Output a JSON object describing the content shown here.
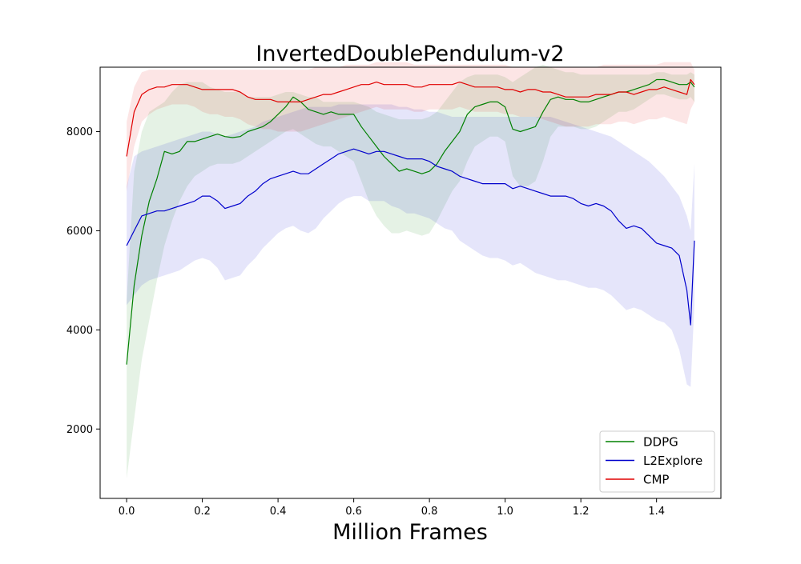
{
  "chart_data": {
    "type": "line",
    "title": "InvertedDoublePendulum-v2",
    "xlabel": "Million Frames",
    "ylabel": "",
    "xlim": [
      -0.07,
      1.57
    ],
    "ylim": [
      600,
      9300
    ],
    "xticks": [
      0.0,
      0.2,
      0.4,
      0.6,
      0.8,
      1.0,
      1.2,
      1.4
    ],
    "xtick_labels": [
      "0.0",
      "0.2",
      "0.4",
      "0.6",
      "0.8",
      "1.0",
      "1.2",
      "1.4"
    ],
    "yticks": [
      2000,
      4000,
      6000,
      8000
    ],
    "ytick_labels": [
      "2000",
      "4000",
      "6000",
      "8000"
    ],
    "grid": false,
    "legend_position": "bottom-right",
    "series": [
      {
        "name": "DDPG",
        "color": "#008000",
        "x": [
          0.0,
          0.02,
          0.04,
          0.06,
          0.08,
          0.1,
          0.12,
          0.14,
          0.16,
          0.18,
          0.2,
          0.22,
          0.24,
          0.26,
          0.28,
          0.3,
          0.32,
          0.34,
          0.36,
          0.38,
          0.4,
          0.42,
          0.44,
          0.46,
          0.48,
          0.5,
          0.52,
          0.54,
          0.56,
          0.58,
          0.6,
          0.62,
          0.64,
          0.66,
          0.68,
          0.7,
          0.72,
          0.74,
          0.76,
          0.78,
          0.8,
          0.82,
          0.84,
          0.86,
          0.88,
          0.9,
          0.92,
          0.94,
          0.96,
          0.98,
          1.0,
          1.02,
          1.04,
          1.06,
          1.08,
          1.1,
          1.12,
          1.14,
          1.16,
          1.18,
          1.2,
          1.22,
          1.24,
          1.26,
          1.28,
          1.3,
          1.32,
          1.34,
          1.36,
          1.38,
          1.4,
          1.42,
          1.44,
          1.46,
          1.48,
          1.49,
          1.5
        ],
        "y": [
          3300,
          4900,
          5900,
          6600,
          7050,
          7600,
          7550,
          7600,
          7800,
          7800,
          7850,
          7900,
          7950,
          7900,
          7880,
          7900,
          8000,
          8050,
          8100,
          8200,
          8350,
          8500,
          8700,
          8600,
          8450,
          8400,
          8350,
          8400,
          8350,
          8350,
          8350,
          8100,
          7900,
          7700,
          7500,
          7350,
          7200,
          7250,
          7200,
          7150,
          7200,
          7350,
          7600,
          7800,
          8000,
          8350,
          8500,
          8550,
          8600,
          8600,
          8500,
          8050,
          8000,
          8050,
          8100,
          8400,
          8650,
          8700,
          8650,
          8650,
          8600,
          8600,
          8650,
          8700,
          8750,
          8800,
          8800,
          8850,
          8900,
          8950,
          9050,
          9050,
          9000,
          8950,
          8950,
          9000,
          8900
        ],
        "upper": [
          4600,
          7200,
          8000,
          8400,
          8500,
          8600,
          8800,
          8950,
          9000,
          9000,
          9000,
          8900,
          8850,
          8800,
          8800,
          8800,
          8700,
          8700,
          8700,
          8700,
          8750,
          8800,
          8800,
          8750,
          8700,
          8700,
          8600,
          8600,
          8600,
          8600,
          8600,
          8550,
          8500,
          8400,
          8350,
          8300,
          8250,
          8250,
          8250,
          8250,
          8300,
          8400,
          8600,
          8800,
          9000,
          9100,
          9150,
          9150,
          9150,
          9150,
          9100,
          9000,
          9100,
          9200,
          9300,
          9350,
          9300,
          9250,
          9200,
          9200,
          9150,
          9150,
          9150,
          9150,
          9150,
          9150,
          9150,
          9150,
          9150,
          9150,
          9200,
          9200,
          9150,
          9150,
          9150,
          9200,
          9150
        ],
        "lower": [
          1000,
          2200,
          3400,
          4200,
          5000,
          5700,
          6200,
          6600,
          6900,
          7100,
          7200,
          7300,
          7350,
          7350,
          7350,
          7400,
          7500,
          7600,
          7700,
          7800,
          7900,
          8000,
          8050,
          7950,
          7850,
          7750,
          7700,
          7700,
          7600,
          7500,
          7400,
          7000,
          6600,
          6300,
          6100,
          5950,
          5950,
          6000,
          5950,
          5900,
          5950,
          6200,
          6500,
          6800,
          7000,
          7400,
          7700,
          7800,
          7900,
          7900,
          7800,
          7100,
          6900,
          6900,
          7000,
          7400,
          7900,
          8100,
          8100,
          8100,
          8050,
          8050,
          8100,
          8200,
          8300,
          8400,
          8400,
          8450,
          8550,
          8650,
          8750,
          8750,
          8700,
          8650,
          8650,
          8700,
          8600
        ]
      },
      {
        "name": "L2Explore",
        "color": "#0000cc",
        "x": [
          0.0,
          0.02,
          0.04,
          0.06,
          0.08,
          0.1,
          0.12,
          0.14,
          0.16,
          0.18,
          0.2,
          0.22,
          0.24,
          0.26,
          0.28,
          0.3,
          0.32,
          0.34,
          0.36,
          0.38,
          0.4,
          0.42,
          0.44,
          0.46,
          0.48,
          0.5,
          0.52,
          0.54,
          0.56,
          0.58,
          0.6,
          0.62,
          0.64,
          0.66,
          0.68,
          0.7,
          0.72,
          0.74,
          0.76,
          0.78,
          0.8,
          0.82,
          0.84,
          0.86,
          0.88,
          0.9,
          0.92,
          0.94,
          0.96,
          0.98,
          1.0,
          1.02,
          1.04,
          1.06,
          1.08,
          1.1,
          1.12,
          1.14,
          1.16,
          1.18,
          1.2,
          1.22,
          1.24,
          1.26,
          1.28,
          1.3,
          1.32,
          1.34,
          1.36,
          1.38,
          1.4,
          1.42,
          1.44,
          1.46,
          1.48,
          1.49,
          1.5
        ],
        "y": [
          5700,
          6000,
          6300,
          6350,
          6400,
          6400,
          6450,
          6500,
          6550,
          6600,
          6700,
          6700,
          6600,
          6450,
          6500,
          6550,
          6700,
          6800,
          6950,
          7050,
          7100,
          7150,
          7200,
          7150,
          7150,
          7250,
          7350,
          7450,
          7550,
          7600,
          7650,
          7600,
          7550,
          7600,
          7600,
          7550,
          7500,
          7450,
          7450,
          7450,
          7400,
          7300,
          7250,
          7200,
          7100,
          7050,
          7000,
          6950,
          6950,
          6950,
          6950,
          6850,
          6900,
          6850,
          6800,
          6750,
          6700,
          6700,
          6700,
          6650,
          6550,
          6500,
          6550,
          6500,
          6400,
          6200,
          6050,
          6100,
          6050,
          5900,
          5750,
          5700,
          5650,
          5500,
          4800,
          4100,
          5800
        ],
        "upper": [
          6900,
          7500,
          7600,
          7650,
          7700,
          7750,
          7800,
          7850,
          7900,
          7950,
          8000,
          8000,
          7950,
          7900,
          7950,
          8000,
          8050,
          8100,
          8200,
          8250,
          8300,
          8350,
          8400,
          8450,
          8500,
          8500,
          8500,
          8500,
          8550,
          8550,
          8550,
          8550,
          8550,
          8550,
          8550,
          8550,
          8500,
          8500,
          8450,
          8450,
          8400,
          8400,
          8350,
          8300,
          8300,
          8300,
          8300,
          8300,
          8300,
          8300,
          8300,
          8300,
          8300,
          8300,
          8300,
          8300,
          8300,
          8250,
          8200,
          8150,
          8100,
          8050,
          8000,
          7950,
          7900,
          7800,
          7700,
          7600,
          7500,
          7400,
          7250,
          7100,
          6900,
          6700,
          6300,
          6000,
          7350
        ],
        "lower": [
          4500,
          4700,
          4900,
          5000,
          5050,
          5100,
          5150,
          5200,
          5300,
          5400,
          5450,
          5400,
          5250,
          5000,
          5050,
          5100,
          5300,
          5450,
          5650,
          5800,
          5950,
          6050,
          6100,
          6000,
          5950,
          6050,
          6250,
          6400,
          6550,
          6650,
          6700,
          6700,
          6600,
          6600,
          6600,
          6500,
          6450,
          6350,
          6350,
          6300,
          6250,
          6150,
          6050,
          6000,
          5800,
          5700,
          5600,
          5500,
          5450,
          5450,
          5400,
          5300,
          5350,
          5250,
          5150,
          5100,
          5050,
          5000,
          5000,
          4950,
          4900,
          4850,
          4850,
          4800,
          4700,
          4550,
          4400,
          4450,
          4400,
          4300,
          4200,
          4150,
          4000,
          3600,
          2900,
          2850,
          4500
        ]
      },
      {
        "name": "CMP",
        "color": "#e00000",
        "x": [
          0.0,
          0.02,
          0.04,
          0.06,
          0.08,
          0.1,
          0.12,
          0.14,
          0.16,
          0.18,
          0.2,
          0.22,
          0.24,
          0.26,
          0.28,
          0.3,
          0.32,
          0.34,
          0.36,
          0.38,
          0.4,
          0.42,
          0.44,
          0.46,
          0.48,
          0.5,
          0.52,
          0.54,
          0.56,
          0.58,
          0.6,
          0.62,
          0.64,
          0.66,
          0.68,
          0.7,
          0.72,
          0.74,
          0.76,
          0.78,
          0.8,
          0.82,
          0.84,
          0.86,
          0.88,
          0.9,
          0.92,
          0.94,
          0.96,
          0.98,
          1.0,
          1.02,
          1.04,
          1.06,
          1.08,
          1.1,
          1.12,
          1.14,
          1.16,
          1.18,
          1.2,
          1.22,
          1.24,
          1.26,
          1.28,
          1.3,
          1.32,
          1.34,
          1.36,
          1.38,
          1.4,
          1.42,
          1.44,
          1.46,
          1.48,
          1.49,
          1.5
        ],
        "y": [
          7500,
          8400,
          8750,
          8850,
          8900,
          8900,
          8950,
          8950,
          8950,
          8900,
          8850,
          8850,
          8850,
          8850,
          8850,
          8800,
          8700,
          8650,
          8650,
          8650,
          8600,
          8600,
          8600,
          8600,
          8650,
          8700,
          8750,
          8750,
          8800,
          8850,
          8900,
          8950,
          8950,
          9000,
          8950,
          8950,
          8950,
          8950,
          8900,
          8900,
          8950,
          8950,
          8950,
          8950,
          9000,
          8950,
          8900,
          8900,
          8900,
          8900,
          8850,
          8850,
          8800,
          8850,
          8850,
          8800,
          8800,
          8750,
          8700,
          8700,
          8700,
          8700,
          8750,
          8750,
          8750,
          8800,
          8800,
          8750,
          8800,
          8850,
          8850,
          8900,
          8850,
          8800,
          8750,
          9050,
          8950
        ],
        "upper": [
          8200,
          8900,
          9200,
          9250,
          9250,
          9250,
          9250,
          9250,
          9250,
          9250,
          9250,
          9250,
          9250,
          9250,
          9250,
          9250,
          9250,
          9250,
          9250,
          9250,
          9250,
          9250,
          9250,
          9250,
          9250,
          9300,
          9300,
          9300,
          9300,
          9350,
          9350,
          9350,
          9350,
          9400,
          9400,
          9400,
          9400,
          9400,
          9350,
          9350,
          9350,
          9350,
          9350,
          9350,
          9350,
          9350,
          9350,
          9350,
          9350,
          9350,
          9350,
          9300,
          9300,
          9300,
          9300,
          9300,
          9300,
          9300,
          9300,
          9300,
          9300,
          9300,
          9300,
          9350,
          9350,
          9350,
          9350,
          9350,
          9350,
          9350,
          9350,
          9400,
          9400,
          9400,
          9400,
          9400,
          9250
        ],
        "lower": [
          6800,
          7700,
          8200,
          8350,
          8450,
          8500,
          8550,
          8550,
          8550,
          8500,
          8400,
          8350,
          8350,
          8300,
          8300,
          8250,
          8150,
          8100,
          8050,
          8050,
          8000,
          8000,
          8000,
          8000,
          8050,
          8100,
          8150,
          8200,
          8250,
          8300,
          8350,
          8400,
          8450,
          8500,
          8450,
          8450,
          8450,
          8450,
          8400,
          8400,
          8450,
          8450,
          8450,
          8450,
          8500,
          8450,
          8400,
          8400,
          8400,
          8400,
          8350,
          8350,
          8300,
          8300,
          8300,
          8250,
          8200,
          8150,
          8100,
          8100,
          8100,
          8100,
          8150,
          8150,
          8150,
          8200,
          8200,
          8150,
          8200,
          8250,
          8250,
          8300,
          8250,
          8200,
          8150,
          8450,
          8600
        ]
      }
    ]
  }
}
